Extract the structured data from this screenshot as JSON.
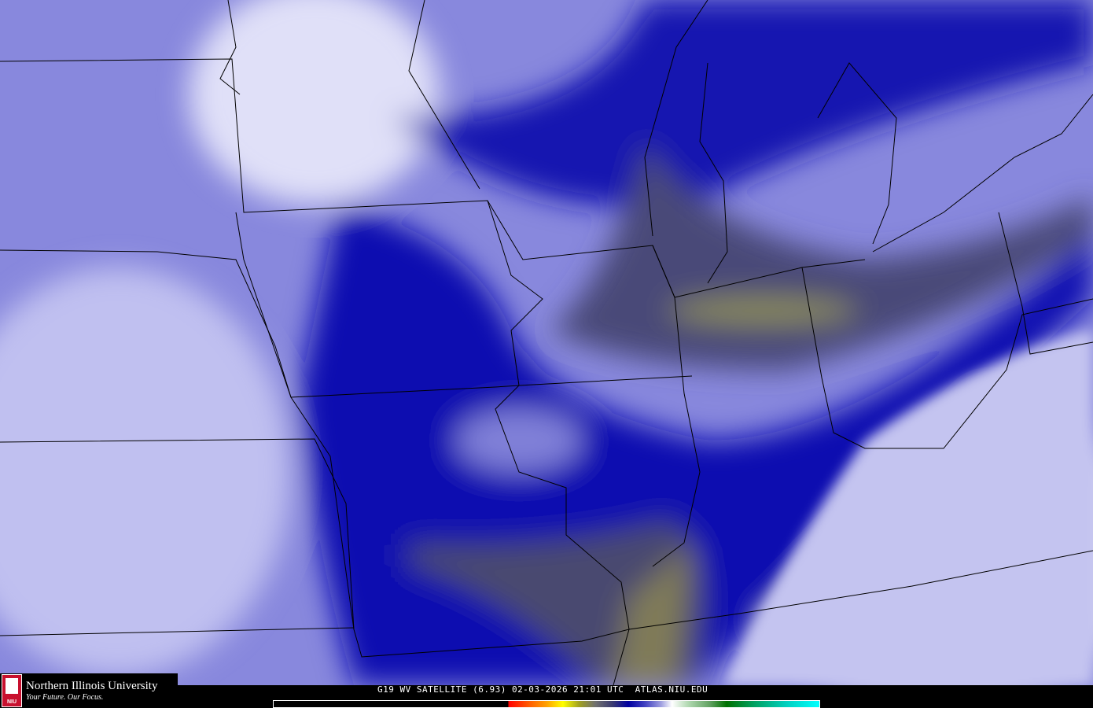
{
  "caption": "G19 WV SATELLITE (6.93) 02-03-2026 21:01 UTC  ATLAS.NIU.EDU",
  "logo": {
    "name": "Northern Illinois University",
    "tagline": "Your Future. Our Focus.",
    "seal_text": "NIU"
  },
  "colors": {
    "dry_olive": "#8a8a50",
    "dry_gray": "#4a4a70",
    "navy": "#0000a8",
    "blue": "#3030b8",
    "mid": "#7070d0",
    "moist": "#c8c8f0"
  }
}
